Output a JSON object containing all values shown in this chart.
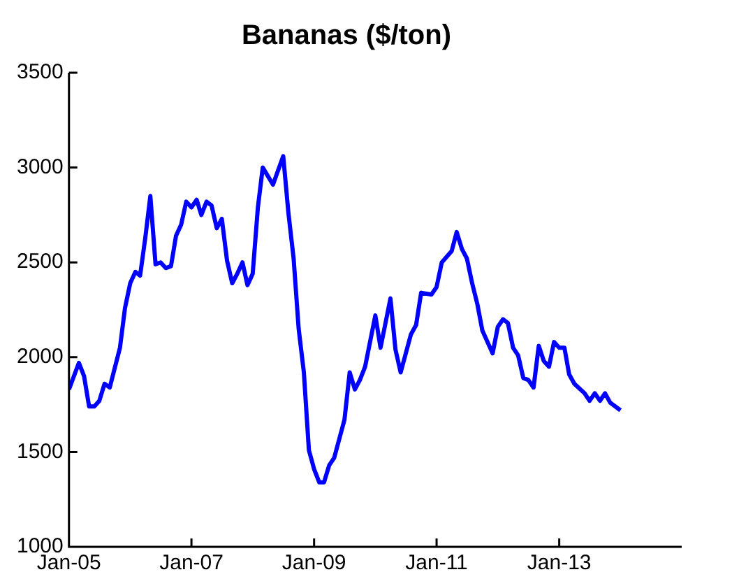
{
  "chart_data": {
    "type": "line",
    "title": "Bananas ($/ton)",
    "x": [
      "2005-01",
      "2005-03",
      "2005-04",
      "2005-05",
      "2005-06",
      "2005-07",
      "2005-08",
      "2005-09",
      "2005-11",
      "2005-12",
      "2006-01",
      "2006-02",
      "2006-03",
      "2006-04",
      "2006-05",
      "2006-06",
      "2006-07",
      "2006-08",
      "2006-09",
      "2006-10",
      "2006-11",
      "2006-12",
      "2007-01",
      "2007-02",
      "2007-03",
      "2007-04",
      "2007-05",
      "2007-06",
      "2007-07",
      "2007-08",
      "2007-09",
      "2007-10",
      "2007-11",
      "2007-12",
      "2008-01",
      "2008-02",
      "2008-03",
      "2008-05",
      "2008-07",
      "2008-08",
      "2008-09",
      "2008-10",
      "2008-11",
      "2008-12",
      "2009-01",
      "2009-02",
      "2009-03",
      "2009-04",
      "2009-05",
      "2009-07",
      "2009-08",
      "2009-09",
      "2009-10",
      "2009-11",
      "2010-01",
      "2010-02",
      "2010-04",
      "2010-05",
      "2010-06",
      "2010-08",
      "2010-09",
      "2010-10",
      "2010-12",
      "2011-01",
      "2011-02",
      "2011-04",
      "2011-05",
      "2011-06",
      "2011-07",
      "2011-08",
      "2011-09",
      "2011-10",
      "2011-12",
      "2012-01",
      "2012-02",
      "2012-03",
      "2012-04",
      "2012-05",
      "2012-06",
      "2012-07",
      "2012-08",
      "2012-09",
      "2012-10",
      "2012-11",
      "2012-12",
      "2013-01",
      "2013-02",
      "2013-03",
      "2013-04",
      "2013-06",
      "2013-07",
      "2013-08",
      "2013-09",
      "2013-10",
      "2013-11",
      "2014-01"
    ],
    "series": [
      {
        "color": "#0000ff",
        "values": [
          1830,
          1970,
          1900,
          1740,
          1740,
          1770,
          1860,
          1840,
          2050,
          2260,
          2390,
          2450,
          2430,
          2630,
          2850,
          2490,
          2500,
          2470,
          2480,
          2640,
          2700,
          2820,
          2790,
          2830,
          2750,
          2820,
          2800,
          2680,
          2730,
          2510,
          2390,
          2440,
          2500,
          2380,
          2440,
          2790,
          3000,
          2910,
          3060,
          2760,
          2520,
          2150,
          1920,
          1510,
          1410,
          1340,
          1340,
          1430,
          1470,
          1670,
          1920,
          1830,
          1880,
          1950,
          2220,
          2050,
          2310,
          2040,
          1920,
          2120,
          2170,
          2340,
          2330,
          2370,
          2500,
          2560,
          2660,
          2570,
          2520,
          2390,
          2280,
          2140,
          2020,
          2160,
          2200,
          2180,
          2050,
          2010,
          1890,
          1880,
          1840,
          2060,
          1980,
          1950,
          2080,
          2050,
          2050,
          1910,
          1860,
          1810,
          1770,
          1810,
          1770,
          1810,
          1760,
          1720
        ]
      }
    ],
    "xlim": [
      "2005-01",
      "2015-01"
    ],
    "xticks": [
      {
        "value": "2005-01",
        "label": "Jan-05"
      },
      {
        "value": "2007-01",
        "label": "Jan-07"
      },
      {
        "value": "2009-01",
        "label": "Jan-09"
      },
      {
        "value": "2011-01",
        "label": "Jan-11"
      },
      {
        "value": "2013-01",
        "label": "Jan-13"
      }
    ],
    "ylim": [
      1000,
      3500
    ],
    "yticks": [
      1000,
      1500,
      2000,
      2500,
      3000,
      3500
    ],
    "grid": false,
    "legend": false,
    "marker": "none",
    "line_style": "solid"
  }
}
